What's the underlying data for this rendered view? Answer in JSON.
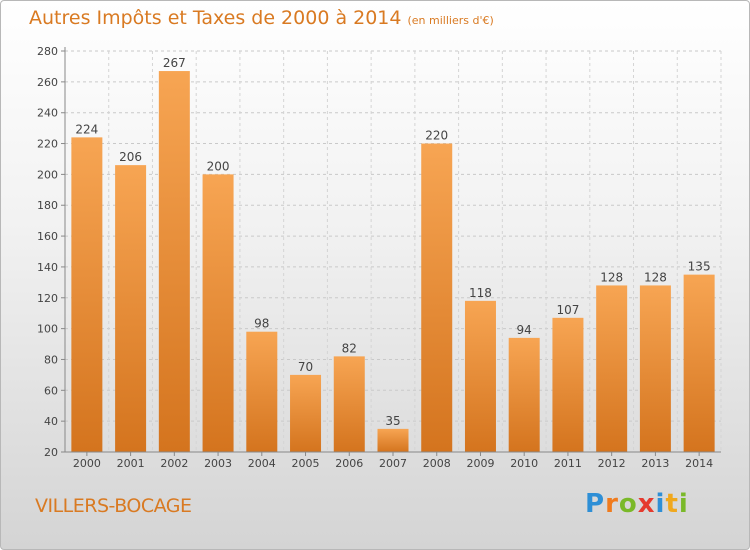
{
  "header": {
    "title": "Autres Impôts et Taxes de 2000 à 2014",
    "subtitle": "(en milliers d'€)"
  },
  "footer": {
    "place": "VILLERS-BOCAGE",
    "logo_letters": [
      "P",
      "r",
      "o",
      "x",
      "i",
      "t",
      "i"
    ],
    "logo_colors": [
      "#2e8fd6",
      "#f07b1d",
      "#7ab929",
      "#e53a2e",
      "#2e8fd6",
      "#f0a81d",
      "#7ab929"
    ]
  },
  "chart_data": {
    "type": "bar",
    "categories": [
      "2000",
      "2001",
      "2002",
      "2003",
      "2004",
      "2005",
      "2006",
      "2007",
      "2008",
      "2009",
      "2010",
      "2011",
      "2012",
      "2013",
      "2014"
    ],
    "values": [
      224,
      206,
      267,
      200,
      98,
      70,
      82,
      35,
      220,
      118,
      94,
      107,
      128,
      128,
      135
    ],
    "ylim": [
      20,
      280
    ],
    "yticks": [
      20,
      40,
      60,
      80,
      100,
      120,
      140,
      160,
      180,
      200,
      220,
      240,
      260,
      280
    ],
    "grid": true,
    "bar_color_top": "#f7a553",
    "bar_color_bottom": "#d4741e"
  }
}
